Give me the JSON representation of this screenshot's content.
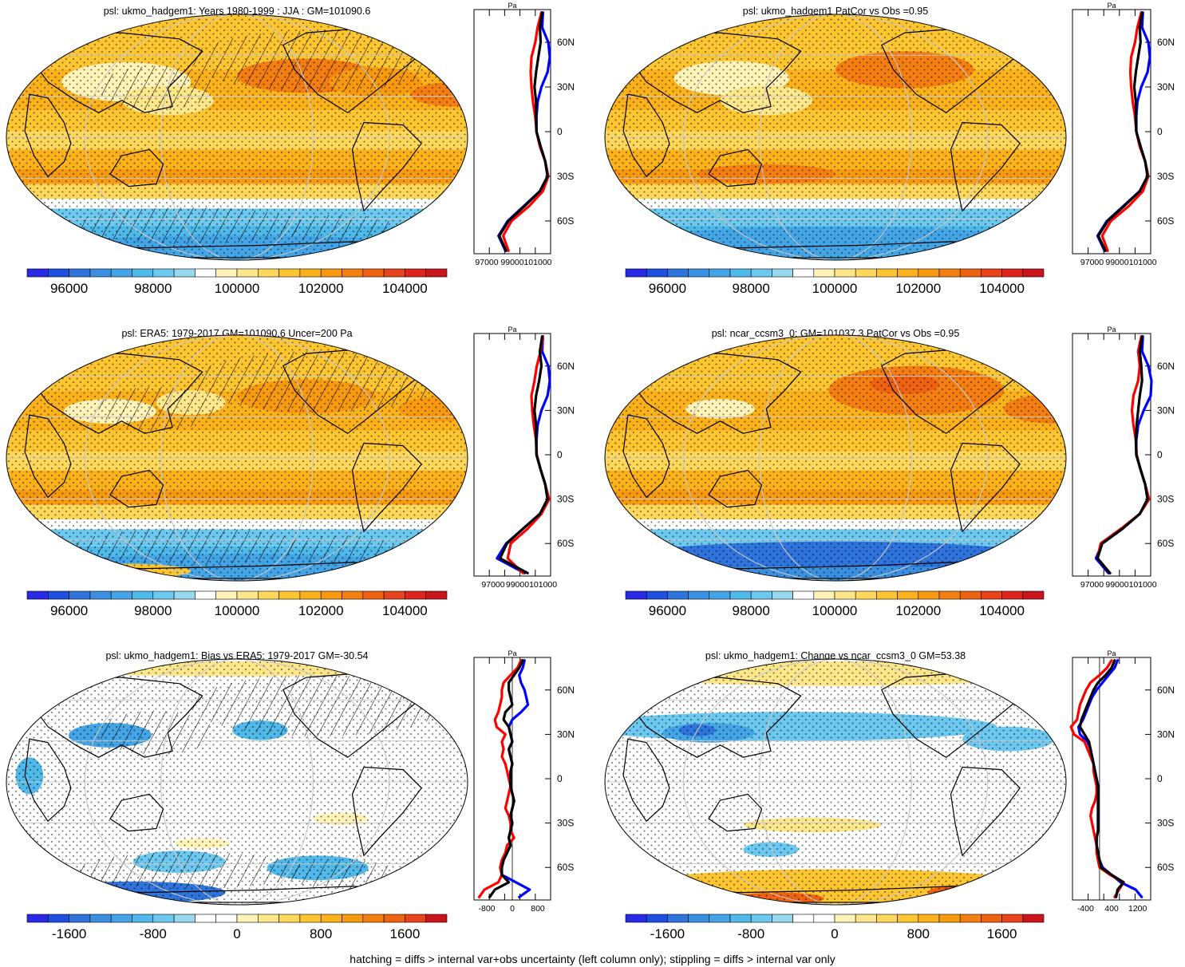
{
  "footer": "hatching = diffs > internal var+obs uncertainty (left column only); stippling = diffs > internal var only",
  "palettes": {
    "abs": [
      "#2a2ae6",
      "#1f4fe0",
      "#2f74dc",
      "#3a8fe0",
      "#44a5e6",
      "#4fb9ea",
      "#6cc8ee",
      "#98d8ef",
      "#ffffff",
      "#fff3b8",
      "#fee78a",
      "#fed85a",
      "#fdc631",
      "#fbb21a",
      "#f89a10",
      "#f47f10",
      "#ee6210",
      "#e8431a",
      "#de241e",
      "#c9141c"
    ],
    "diff": [
      "#2a2ae6",
      "#1f4fe0",
      "#2f74dc",
      "#3a8fe0",
      "#44a5e6",
      "#4fb9ea",
      "#6cc8ee",
      "#98d8ef",
      "#ffffff",
      "#ffffff",
      "#fff3b8",
      "#fee78a",
      "#fed85a",
      "#fdc631",
      "#fbb21a",
      "#f89a10",
      "#f47f10",
      "#ee6210",
      "#e8431a",
      "#c9141c"
    ]
  },
  "chart_data": [
    {
      "type": "heatmap",
      "title": "psl: ukmo_hadgem1: Years 1980-1999 : JJA : GM=101090.6",
      "palette": "abs",
      "colorbar_labels": [
        "96000",
        "98000",
        "100000",
        "102000",
        "104000"
      ],
      "profile": {
        "unit": "Pa",
        "xlim": [
          97000,
          102000
        ],
        "x_tick_labels": [
          "97000",
          "99000",
          "101000"
        ],
        "y_tick_labels": [
          "60N",
          "30N",
          "0",
          "30S",
          "60S"
        ],
        "lats": [
          80,
          70,
          60,
          50,
          40,
          30,
          20,
          10,
          0,
          -10,
          -20,
          -30,
          -40,
          -50,
          -60,
          -70,
          -80
        ],
        "series": [
          {
            "color": "#000000",
            "values": [
              101450,
              101300,
              101350,
              101200,
              101050,
              100950,
              101050,
              101050,
              101080,
              101350,
              101650,
              101800,
              101300,
              100300,
              99250,
              98650,
              99100
            ]
          },
          {
            "color": "#0000ff",
            "values": [
              101500,
              101450,
              101850,
              101950,
              101800,
              101400,
              101150,
              101080,
              101080,
              101350,
              101650,
              101800,
              101300,
              100250,
              99200,
              98600,
              99050
            ]
          },
          {
            "color": "#ff0000",
            "values": [
              101400,
              101150,
              101000,
              100750,
              100700,
              100750,
              100850,
              101000,
              101080,
              101300,
              101650,
              101850,
              101500,
              100600,
              99450,
              98900,
              99250
            ]
          }
        ]
      }
    },
    {
      "type": "heatmap",
      "title": "psl: ukmo_hadgem1 PatCor vs Obs =0.95",
      "palette": "abs",
      "colorbar_labels": [
        "96000",
        "98000",
        "100000",
        "102000",
        "104000"
      ],
      "profile": {
        "unit": "Pa",
        "xlim": [
          97000,
          102000
        ],
        "x_tick_labels": [
          "97000",
          "99000101000"
        ],
        "y_tick_labels": [
          "60N",
          "30N",
          "0",
          "30S",
          "60S"
        ],
        "lats": [
          80,
          70,
          60,
          50,
          40,
          30,
          20,
          10,
          0,
          -10,
          -20,
          -30,
          -40,
          -50,
          -60,
          -70,
          -80
        ],
        "series": [
          {
            "color": "#000000",
            "values": [
              101450,
              101300,
              101350,
              101200,
              101050,
              100950,
              101050,
              101050,
              101080,
              101350,
              101650,
              101800,
              101300,
              100300,
              99250,
              98650,
              99100
            ]
          },
          {
            "color": "#0000ff",
            "values": [
              101500,
              101450,
              101850,
              101950,
              101800,
              101400,
              101150,
              101080,
              101080,
              101350,
              101650,
              101800,
              101300,
              100250,
              99200,
              98600,
              99050
            ]
          },
          {
            "color": "#ff0000",
            "values": [
              101400,
              101150,
              101000,
              100750,
              100700,
              100750,
              100850,
              101000,
              101080,
              101300,
              101650,
              101850,
              101500,
              100600,
              99450,
              98900,
              99250
            ]
          }
        ]
      }
    },
    {
      "type": "heatmap",
      "title": "psl: ERA5: 1979-2017 GM=101090.6 Uncer=200 Pa",
      "palette": "abs",
      "colorbar_labels": [
        "96000",
        "98000",
        "100000",
        "102000",
        "104000"
      ],
      "profile": {
        "unit": "Pa",
        "xlim": [
          97000,
          102000
        ],
        "x_tick_labels": [
          "97000",
          "99000101000"
        ],
        "y_tick_labels": [
          "60N",
          "30N",
          "0",
          "30S",
          "60S"
        ],
        "lats": [
          80,
          70,
          60,
          50,
          40,
          30,
          20,
          10,
          0,
          -10,
          -20,
          -30,
          -40,
          -50,
          -60,
          -70,
          -80
        ],
        "series": [
          {
            "color": "#000000",
            "values": [
              101450,
              101300,
              101400,
              101250,
              101050,
              100950,
              101050,
              101050,
              101080,
              101350,
              101650,
              101800,
              101300,
              100200,
              99150,
              98700,
              100500
            ]
          },
          {
            "color": "#0000ff",
            "values": [
              101500,
              101450,
              101850,
              101950,
              101800,
              101400,
              101150,
              101080,
              101080,
              101350,
              101650,
              101800,
              101300,
              100200,
              99100,
              98500,
              100300
            ]
          },
          {
            "color": "#ff0000",
            "values": [
              101500,
              101350,
              101100,
              100950,
              100750,
              100800,
              100900,
              101050,
              101100,
              101350,
              101650,
              101900,
              101400,
              100500,
              99400,
              99200,
              100200
            ]
          }
        ]
      }
    },
    {
      "type": "heatmap",
      "title": "psl: ncar_ccsm3_0: GM=101037.3 PatCor vs Obs =0.95",
      "palette": "abs",
      "colorbar_labels": [
        "96000",
        "98000",
        "100000",
        "102000",
        "104000"
      ],
      "profile": {
        "unit": "Pa",
        "xlim": [
          97000,
          102000
        ],
        "x_tick_labels": [
          "97000",
          "99000101000"
        ],
        "y_tick_labels": [
          "60N",
          "30N",
          "0",
          "30S",
          "60S"
        ],
        "lats": [
          80,
          70,
          60,
          50,
          40,
          30,
          20,
          10,
          0,
          -10,
          -20,
          -30,
          -40,
          -50,
          -60,
          -70,
          -80
        ],
        "series": [
          {
            "color": "#000000",
            "values": [
              101450,
              101300,
              101400,
              101450,
              101300,
              101200,
              101100,
              101050,
              101080,
              101350,
              101650,
              101800,
              101300,
              100200,
              98900,
              98600,
              99400
            ]
          },
          {
            "color": "#0000ff",
            "values": [
              101500,
              101450,
              101850,
              102050,
              102000,
              101550,
              101200,
              101080,
              101080,
              101350,
              101650,
              101800,
              101300,
              100200,
              98900,
              98500,
              99300
            ]
          },
          {
            "color": "#ff0000",
            "values": [
              101400,
              101200,
              101300,
              101200,
              100900,
              100800,
              100900,
              101050,
              101100,
              101350,
              101650,
              101900,
              101300,
              100100,
              98800,
              98600,
              99400
            ]
          }
        ]
      }
    },
    {
      "type": "heatmap",
      "title": "psl: ukmo_hadgem1: Bias vs ERA5: 1979-2017 GM=-30.54",
      "palette": "diff",
      "colorbar_labels": [
        "-1600",
        "-800",
        "0",
        "800",
        "1600"
      ],
      "profile": {
        "unit": "Pa",
        "xlim": [
          -1100,
          1100
        ],
        "x_tick_labels": [
          "-800",
          "0",
          "800"
        ],
        "y_tick_labels": [
          "60N",
          "30N",
          "0",
          "30S",
          "60S"
        ],
        "lats": [
          80,
          75,
          70,
          65,
          60,
          55,
          50,
          45,
          40,
          35,
          30,
          25,
          20,
          15,
          10,
          5,
          0,
          -5,
          -10,
          -15,
          -20,
          -25,
          -30,
          -35,
          -40,
          -45,
          -50,
          -55,
          -60,
          -65,
          -70,
          -75,
          -80
        ],
        "series": [
          {
            "color": "#000000",
            "values": [
              300,
              200,
              50,
              -100,
              -100,
              -50,
              0,
              -200,
              -250,
              -100,
              -50,
              0,
              -100,
              -50,
              0,
              -50,
              -50,
              -50,
              0,
              50,
              0,
              -50,
              0,
              -50,
              -100,
              -50,
              -150,
              -250,
              -300,
              -300,
              -100,
              -500,
              -650
            ]
          },
          {
            "color": "#0000ff",
            "values": [
              350,
              300,
              200,
              250,
              350,
              400,
              450,
              250,
              0,
              -100,
              -50,
              0,
              -100,
              -50,
              0,
              -50,
              -50,
              -50,
              0,
              50,
              0,
              -50,
              0,
              -50,
              -100,
              -50,
              -150,
              -250,
              -300,
              -300,
              100,
              500,
              200
            ]
          },
          {
            "color": "#ff0000",
            "values": [
              250,
              150,
              -50,
              -250,
              -300,
              -300,
              -350,
              -400,
              -500,
              -450,
              -200,
              -300,
              -250,
              -300,
              -200,
              -150,
              -100,
              -50,
              -100,
              -150,
              -200,
              -100,
              -50,
              -50,
              50,
              -150,
              -200,
              -300,
              -350,
              -300,
              -400,
              -800,
              -950
            ]
          }
        ]
      }
    },
    {
      "type": "heatmap",
      "title": "psl: ukmo_hadgem1: Change vs ncar_ccsm3_0 GM=53.38",
      "palette": "diff",
      "colorbar_labels": [
        "-1600",
        "-800",
        "0",
        "800",
        "1600"
      ],
      "profile": {
        "unit": "Pa",
        "xlim": [
          -900,
          1700
        ],
        "x_tick_labels": [
          "-400",
          "400",
          "1200"
        ],
        "y_tick_labels": [
          "60N",
          "30N",
          "0",
          "30S",
          "60S"
        ],
        "lats": [
          80,
          75,
          70,
          65,
          60,
          55,
          50,
          45,
          40,
          35,
          30,
          25,
          20,
          15,
          10,
          5,
          0,
          -5,
          -10,
          -15,
          -20,
          -25,
          -30,
          -35,
          -40,
          -45,
          -50,
          -55,
          -60,
          -65,
          -70,
          -75,
          -80
        ],
        "series": [
          {
            "color": "#000000",
            "values": [
              500,
              400,
              200,
              -50,
              -200,
              -300,
              -400,
              -500,
              -600,
              -650,
              -500,
              -350,
              -300,
              -250,
              -200,
              -150,
              -100,
              -50,
              -50,
              -50,
              -50,
              -50,
              -50,
              -50,
              -100,
              -100,
              -50,
              0,
              50,
              400,
              800,
              600,
              550
            ]
          },
          {
            "color": "#0000ff",
            "values": [
              600,
              500,
              300,
              100,
              -100,
              -250,
              -350,
              -450,
              -550,
              -700,
              -650,
              -400,
              -300,
              -250,
              -200,
              -150,
              -100,
              -50,
              -50,
              -50,
              -50,
              -50,
              -50,
              -50,
              -100,
              -100,
              -50,
              0,
              100,
              400,
              700,
              1200,
              1400
            ]
          },
          {
            "color": "#ff0000",
            "values": [
              400,
              250,
              0,
              -300,
              -450,
              -550,
              -650,
              -700,
              -750,
              -950,
              -850,
              -500,
              -400,
              -300,
              -200,
              -200,
              -150,
              -100,
              -100,
              -150,
              -250,
              -300,
              -250,
              -200,
              -150,
              -100,
              -100,
              -50,
              0,
              350,
              800,
              650,
              500
            ]
          }
        ]
      }
    }
  ]
}
